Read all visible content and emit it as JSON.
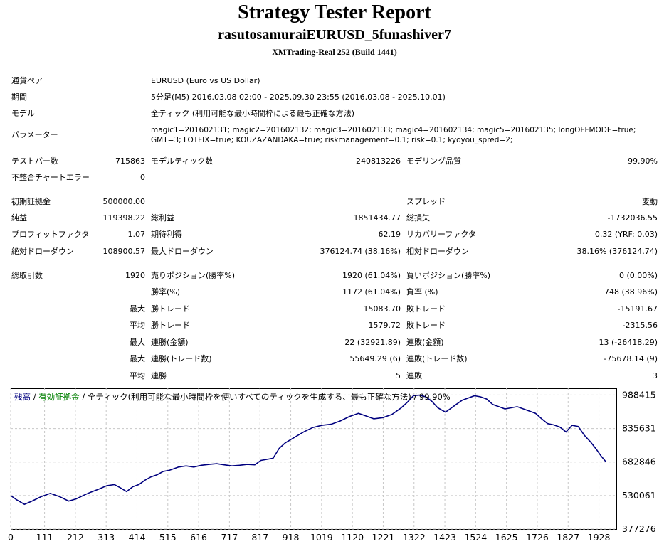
{
  "header": {
    "title": "Strategy Tester Report",
    "subtitle": "rasutosamuraiEURUSD_5funashiver7",
    "build": "XMTrading-Real 252 (Build 1441)"
  },
  "info": {
    "symbol_label": "通貨ペア",
    "symbol": "EURUSD (Euro vs US Dollar)",
    "period_label": "期間",
    "period": "5分足(M5) 2016.03.08 02:00 - 2025.09.30 23:55 (2016.03.08 - 2025.10.01)",
    "model_label": "モデル",
    "model": "全ティック (利用可能な最小時間枠による最も正確な方法)",
    "params_label": "パラメーター",
    "params_line1": "magic1=201602131; magic2=201602132; magic3=201602133; magic4=201602134; magic5=201602135; longOFFMODE=true;",
    "params_line2": "GMT=3; LOTFIX=true; KOUZAZANDAKA=true; riskmanagement=0.1; risk=0.1; kyoyou_spred=2;"
  },
  "stats": {
    "bars_label": "テストバー数",
    "bars": "715863",
    "ticks_label": "モデルティック数",
    "ticks": "240813226",
    "quality_label": "モデリング品質",
    "quality": "99.90%",
    "mismatch_label": "不整合チャートエラー",
    "mismatch": "0",
    "deposit_label": "初期証拠金",
    "deposit": "500000.00",
    "spread_label": "スプレッド",
    "spread": "変動",
    "net_label": "純益",
    "net": "119398.22",
    "gross_profit_label": "総利益",
    "gross_profit": "1851434.77",
    "gross_loss_label": "総損失",
    "gross_loss": "-1732036.55",
    "pf_label": "プロフィットファクタ",
    "pf": "1.07",
    "expected_label": "期待利得",
    "expected": "62.19",
    "recovery_label": "リカバリーファクタ",
    "recovery": "0.32 (YRF: 0.03)",
    "abs_dd_label": "絶対ドローダウン",
    "abs_dd": "108900.57",
    "max_dd_label": "最大ドローダウン",
    "max_dd": "376124.74 (38.16%)",
    "rel_dd_label": "相対ドローダウン",
    "rel_dd": "38.16% (376124.74)",
    "trades_label": "総取引数",
    "trades": "1920",
    "short_label": "売りポジション(勝率%)",
    "short": "1920 (61.04%)",
    "long_label": "買いポジション(勝率%)",
    "long": "0 (0.00%)",
    "winrate_label": "勝率(%)",
    "winrate": "1172 (61.04%)",
    "lossrate_label": "負率 (%)",
    "lossrate": "748 (38.96%)",
    "max_label": "最大",
    "avg_label": "平均",
    "win_trade_label": "勝トレード",
    "loss_trade_label": "敗トレード",
    "largest_win": "15083.70",
    "largest_loss": "-15191.67",
    "avg_win": "1579.72",
    "avg_loss": "-2315.56",
    "consec_win_amt_label": "連勝(金額)",
    "consec_win_amt": "22 (32921.89)",
    "consec_loss_amt_label": "連敗(金額)",
    "consec_loss_amt": "13 (-26418.29)",
    "consec_win_trd_label": "連勝(トレード数)",
    "consec_win_trd": "55649.29 (6)",
    "consec_loss_trd_label": "連敗(トレード数)",
    "consec_loss_trd": "-75678.14 (9)",
    "avg_consec_win_label": "連勝",
    "avg_consec_win": "5",
    "avg_consec_loss_label": "連敗",
    "avg_consec_loss": "3"
  },
  "chart_data": {
    "type": "line",
    "legend": {
      "balance": "残高",
      "equity": "有効証拠金",
      "sep": " / ",
      "description": " / 全ティック(利用可能な最小時間枠を使いすべてのティックを生成する、最も正確な方法) / 99.90%"
    },
    "colors": {
      "balance": "#00007f",
      "equity": "#008000",
      "grid": "#c8c8c8"
    },
    "x_ticks": [
      0,
      111,
      212,
      313,
      414,
      515,
      616,
      717,
      817,
      918,
      1019,
      1120,
      1221,
      1322,
      1423,
      1524,
      1625,
      1726,
      1827,
      1928
    ],
    "y_ticks": [
      "988415",
      "835631",
      "682846",
      "530061",
      "377276"
    ],
    "y_tick_values": [
      988415,
      835631,
      682846,
      530061,
      377276
    ],
    "xlim": [
      0,
      1985
    ],
    "ylim": [
      377276,
      1018972
    ],
    "series": [
      {
        "name": "残高",
        "x": [
          0,
          20,
          45,
          70,
          100,
          130,
          160,
          190,
          215,
          240,
          262,
          290,
          315,
          340,
          360,
          380,
          400,
          420,
          440,
          460,
          480,
          500,
          520,
          550,
          575,
          600,
          625,
          650,
          675,
          700,
          725,
          750,
          775,
          800,
          820,
          840,
          860,
          880,
          900,
          930,
          960,
          990,
          1020,
          1050,
          1080,
          1110,
          1140,
          1160,
          1190,
          1220,
          1250,
          1280,
          1300,
          1320,
          1340,
          1360,
          1380,
          1400,
          1425,
          1440,
          1460,
          1480,
          1500,
          1520,
          1540,
          1560,
          1580,
          1600,
          1620,
          1640,
          1660,
          1690,
          1720,
          1740,
          1760,
          1780,
          1800,
          1820,
          1840,
          1860,
          1880,
          1900,
          1920,
          1935,
          1950
        ],
        "y": [
          530000,
          510000,
          490000,
          505000,
          525000,
          540000,
          525000,
          505000,
          515000,
          532000,
          545000,
          560000,
          575000,
          580000,
          565000,
          548000,
          570000,
          580000,
          600000,
          615000,
          625000,
          640000,
          645000,
          660000,
          665000,
          660000,
          668000,
          672000,
          675000,
          670000,
          665000,
          668000,
          672000,
          670000,
          690000,
          695000,
          700000,
          745000,
          770000,
          795000,
          820000,
          840000,
          850000,
          855000,
          870000,
          890000,
          905000,
          895000,
          880000,
          885000,
          900000,
          930000,
          955000,
          985000,
          988000,
          980000,
          960000,
          930000,
          910000,
          925000,
          945000,
          965000,
          975000,
          985000,
          980000,
          970000,
          945000,
          935000,
          925000,
          930000,
          935000,
          920000,
          905000,
          880000,
          858000,
          852000,
          842000,
          820000,
          850000,
          845000,
          805000,
          775000,
          740000,
          710000,
          685000
        ]
      }
    ]
  }
}
